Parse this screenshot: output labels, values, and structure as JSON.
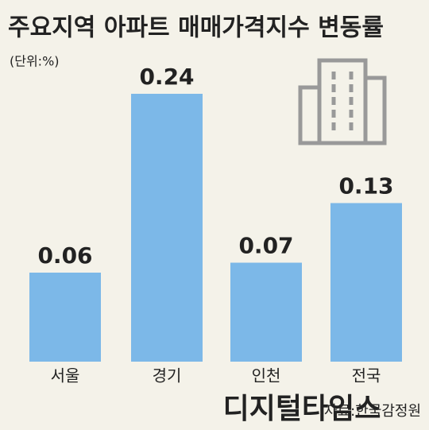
{
  "chart_data": {
    "type": "bar",
    "title": "주요지역 아파트 매매가격지수 변동률",
    "subtitle": "(단위:%)",
    "categories": [
      "서울",
      "경기",
      "인천",
      "전국"
    ],
    "values": [
      0.06,
      0.24,
      0.07,
      0.13
    ],
    "color": "#7cb8e8",
    "source": "자료:한국감정원",
    "watermark": "디지털타임스"
  }
}
